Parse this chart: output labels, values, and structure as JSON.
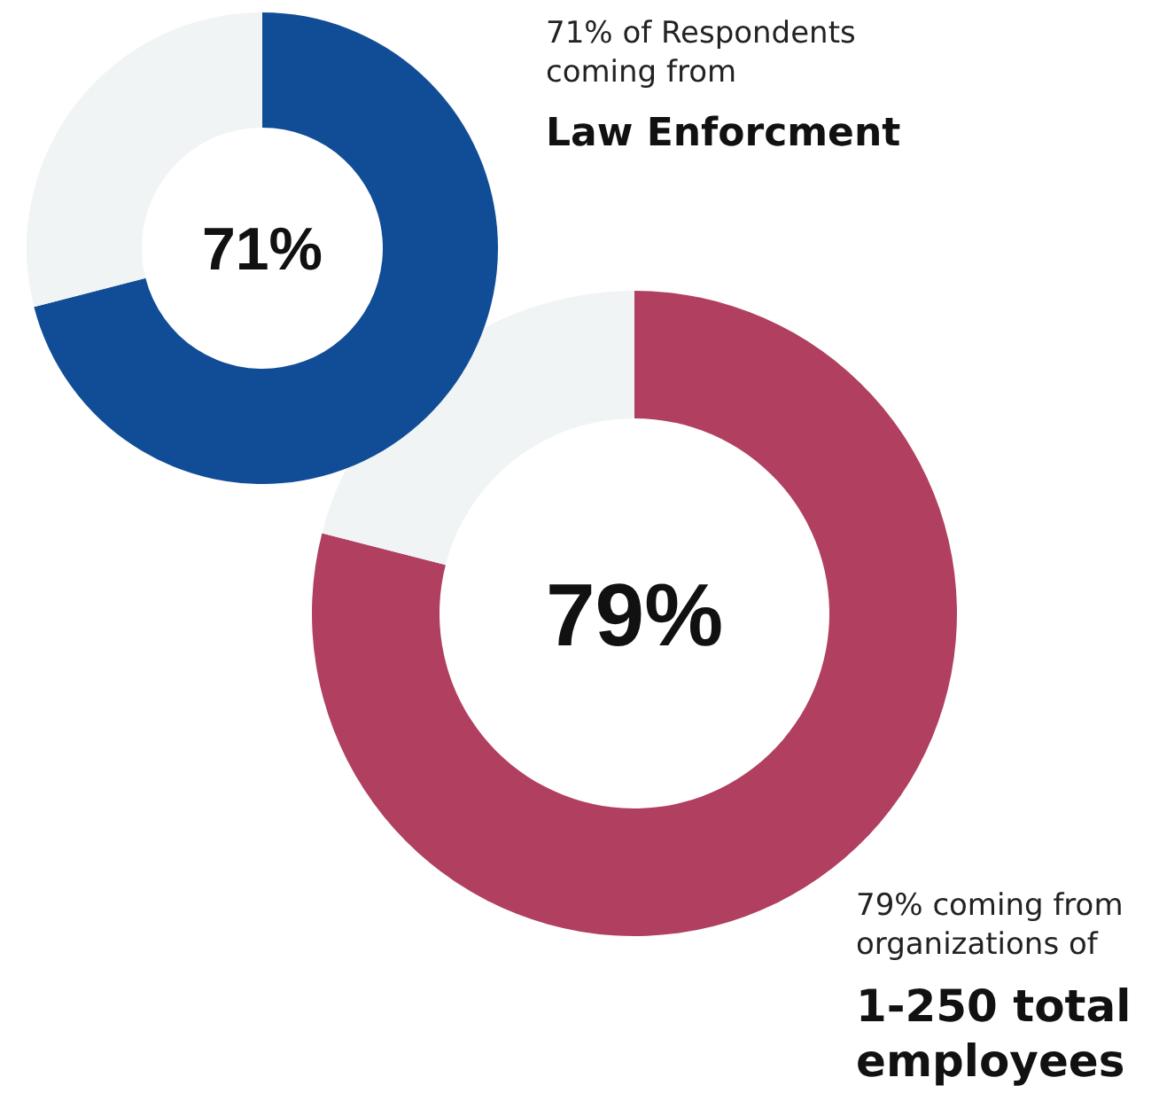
{
  "chart_data": [
    {
      "type": "donut",
      "categories": [
        null,
        null
      ],
      "values": [
        71,
        29
      ],
      "colors": [
        "#114d96",
        "#f1f4f5"
      ],
      "value_labels": [
        "71%",
        null
      ],
      "annotations": [
        "71% of Respondents coming from",
        "Law Enforcment"
      ]
    },
    {
      "type": "donut",
      "categories": [
        null,
        null
      ],
      "values": [
        79,
        21
      ],
      "colors": [
        "#b03f60",
        "#f1f4f5"
      ],
      "value_labels": [
        "79%",
        null
      ],
      "annotations": [
        "79% coming from organizations of",
        "1-250 total employees"
      ]
    }
  ]
}
